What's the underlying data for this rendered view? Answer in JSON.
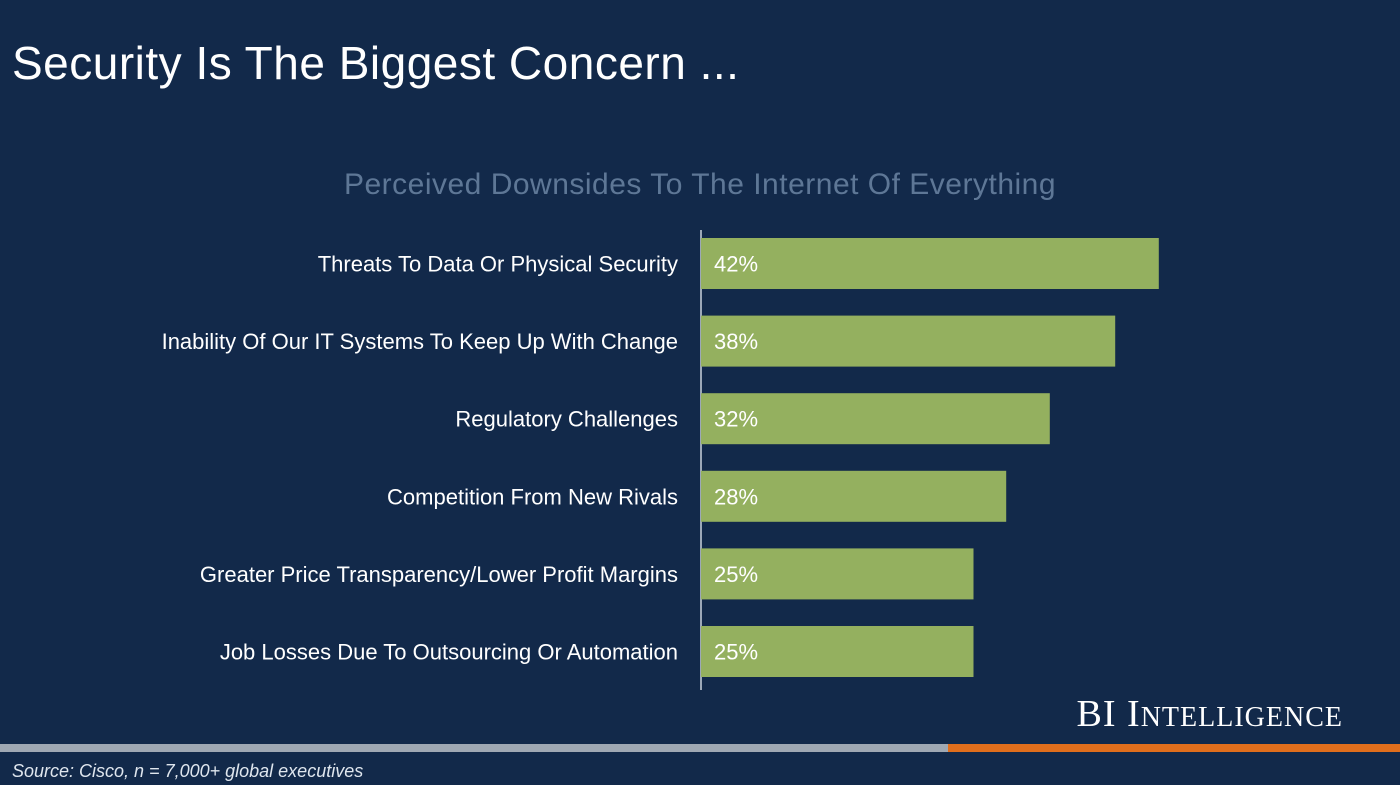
{
  "title": "Security Is The Biggest Concern ...",
  "logo": {
    "initials": "BI",
    "cap": "I",
    "rest": "NTELLIGENCE"
  },
  "source": "Source: Cisco, n = 7,000+ global executives",
  "colors": {
    "background": "#12294a",
    "bar": "#94b05f",
    "accent": "#e06e1c",
    "subtitle": "#5e7796"
  },
  "chart_data": {
    "type": "bar",
    "orientation": "horizontal",
    "title": "Perceived Downsides To The Internet Of  Everything",
    "xlabel": "",
    "ylabel": "",
    "xlim": [
      0,
      50
    ],
    "grid": false,
    "categories": [
      "Threats To Data Or Physical Security",
      "Inability Of Our IT Systems To Keep Up With Change",
      "Regulatory Challenges",
      "Competition From New Rivals",
      "Greater Price Transparency/Lower Profit Margins",
      "Job Losses Due To Outsourcing Or Automation"
    ],
    "values": [
      42,
      38,
      32,
      28,
      25,
      25
    ],
    "data_labels": [
      "42%",
      "38%",
      "32%",
      "28%",
      "25%",
      "25%"
    ]
  }
}
